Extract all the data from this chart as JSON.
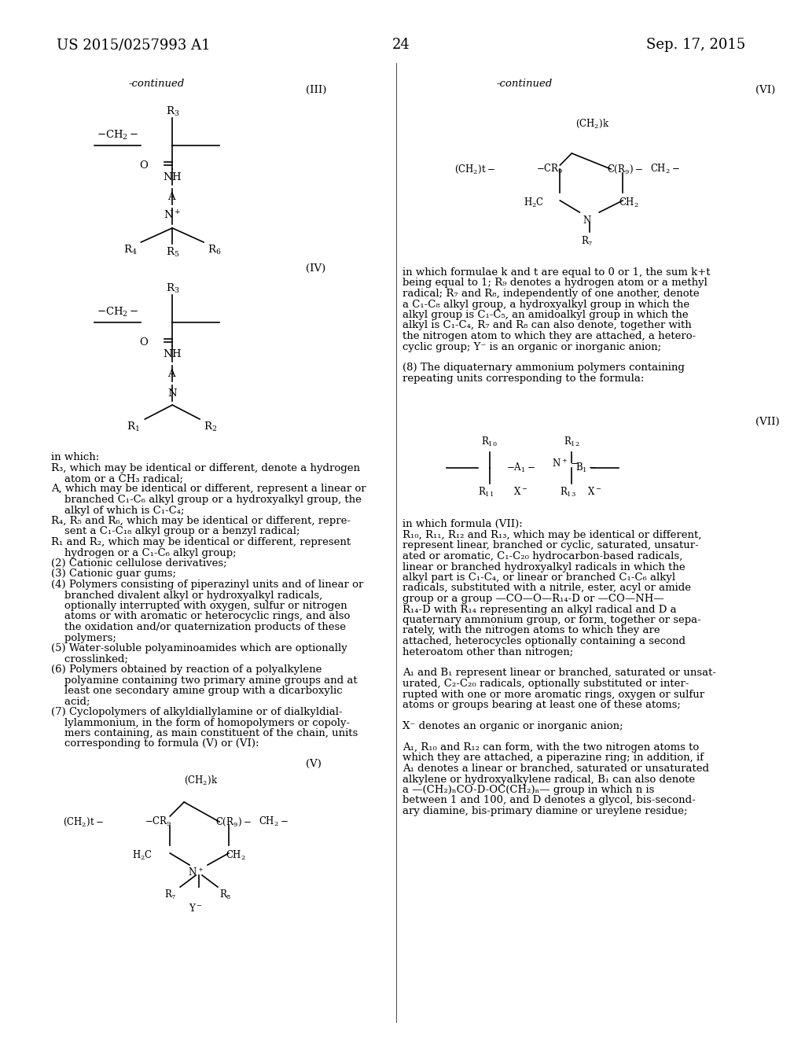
{
  "background_color": "#ffffff",
  "header_left": "US 2015/0257993 A1",
  "header_right": "Sep. 17, 2015",
  "page_number": "24",
  "font_family": "DejaVu Serif",
  "body_font_size": 9.5,
  "title_font_size": 14
}
